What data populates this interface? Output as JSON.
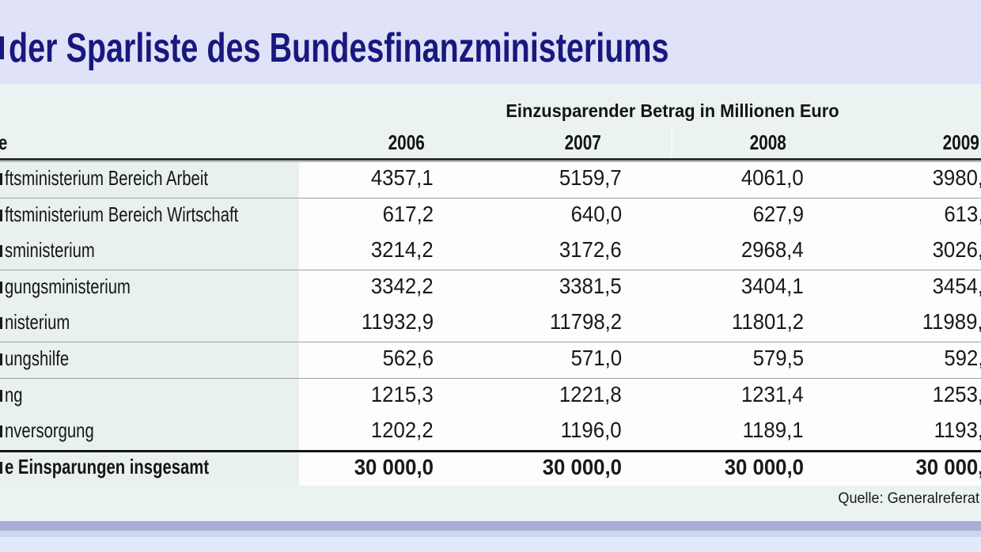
{
  "title": "der Sparliste des Bundesfinanzministeriums",
  "header": {
    "group_label": "Einzusparender Betrag in Millionen Euro",
    "row_label_column": "e",
    "years": [
      "2006",
      "2007",
      "2008",
      "2009"
    ]
  },
  "rows": [
    {
      "label": "ftsministerium Bereich Arbeit",
      "values": [
        "4357,1",
        "5159,7",
        "4061,0",
        "3980,"
      ]
    },
    {
      "label": "ftsministerium Bereich Wirtschaft",
      "values": [
        "617,2",
        "640,0",
        "627,9",
        "613,"
      ]
    },
    {
      "label": "sministerium",
      "values": [
        "3214,2",
        "3172,6",
        "2968,4",
        "3026,"
      ]
    },
    {
      "label": "gungsministerium",
      "values": [
        "3342,2",
        "3381,5",
        "3404,1",
        "3454,"
      ]
    },
    {
      "label": "nisterium",
      "values": [
        "11932,9",
        "11798,2",
        "11801,2",
        "11989,"
      ]
    },
    {
      "label": "ungshilfe",
      "values": [
        "562,6",
        "571,0",
        "579,5",
        "592,"
      ]
    },
    {
      "label": "ng",
      "values": [
        "1215,3",
        "1221,8",
        "1231,4",
        "1253,"
      ]
    },
    {
      "label": "nversorgung",
      "values": [
        "1202,2",
        "1196,0",
        "1189,1",
        "1193,"
      ]
    }
  ],
  "total_row": {
    "label": "e Einsparungen insgesamt",
    "values": [
      "30 000,0",
      "30 000,0",
      "30 000,0",
      "30 000,"
    ]
  },
  "source": "Quelle: Generalreferat",
  "colors": {
    "title_text": "#18187e",
    "title_band": "#dfe2f8",
    "table_background": "#ebf2f2",
    "label_cell": "#e8f1f0",
    "value_cell": "#fdfdfd",
    "row_rule": "#9ba2a2",
    "strong_rule": "#151515",
    "bottom_band_dark": "#a9aed7",
    "bottom_band_mid": "#cdd5ef",
    "bottom_band_light": "#e2e9fc"
  },
  "chart_data": {
    "type": "table",
    "title": "der Sparliste des Bundesfinanzministeriums",
    "unit_header": "Einzusparender Betrag in Millionen Euro",
    "columns": [
      "2006",
      "2007",
      "2008",
      "2009"
    ],
    "rows": [
      {
        "label": "ftsministerium Bereich Arbeit",
        "values": [
          "4357,1",
          "5159,7",
          "4061,0",
          "3980,"
        ]
      },
      {
        "label": "ftsministerium Bereich Wirtschaft",
        "values": [
          "617,2",
          "640,0",
          "627,9",
          "613,"
        ]
      },
      {
        "label": "sministerium",
        "values": [
          "3214,2",
          "3172,6",
          "2968,4",
          "3026,"
        ]
      },
      {
        "label": "gungsministerium",
        "values": [
          "3342,2",
          "3381,5",
          "3404,1",
          "3454,"
        ]
      },
      {
        "label": "nisterium",
        "values": [
          "11932,9",
          "11798,2",
          "11801,2",
          "11989,"
        ]
      },
      {
        "label": "ungshilfe",
        "values": [
          "562,6",
          "571,0",
          "579,5",
          "592,"
        ]
      },
      {
        "label": "ng",
        "values": [
          "1215,3",
          "1221,8",
          "1231,4",
          "1253,"
        ]
      },
      {
        "label": "nversorgung",
        "values": [
          "1202,2",
          "1196,0",
          "1189,1",
          "1193,"
        ]
      }
    ],
    "total": {
      "label": "e Einsparungen insgesamt",
      "values": [
        "30 000,0",
        "30 000,0",
        "30 000,0",
        "30 000,"
      ]
    },
    "source": "Quelle: Generalreferat"
  }
}
